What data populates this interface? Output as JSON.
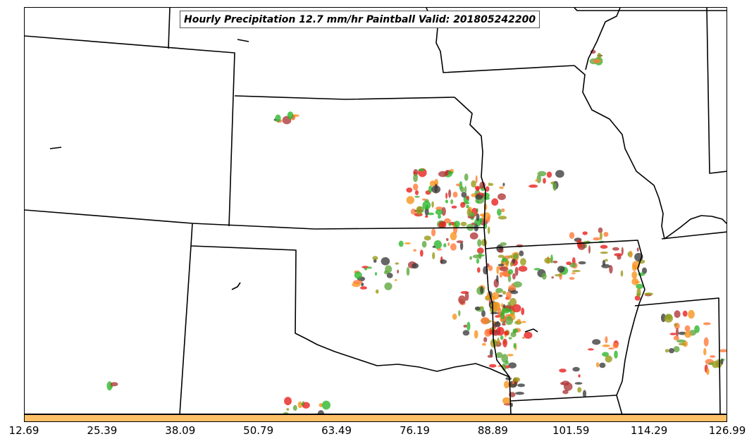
{
  "map": {
    "title": "Hourly Precipitation 12.7 mm/hr Paintball Valid: 201805242200",
    "colors": {
      "border": "#000000",
      "colorbar": "#ffc066",
      "member_palette": [
        "#e8201e",
        "#f7941d",
        "#9a9a1a",
        "#2db82d",
        "#3f3f3f",
        "#b03a3a",
        "#5fa83f",
        "#ff7a3a"
      ]
    },
    "colorbar": {
      "ticks": [
        "12.69",
        "25.39",
        "38.09",
        "50.79",
        "63.49",
        "76.19",
        "88.89",
        "101.59",
        "114.29",
        "126.99"
      ]
    }
  }
}
